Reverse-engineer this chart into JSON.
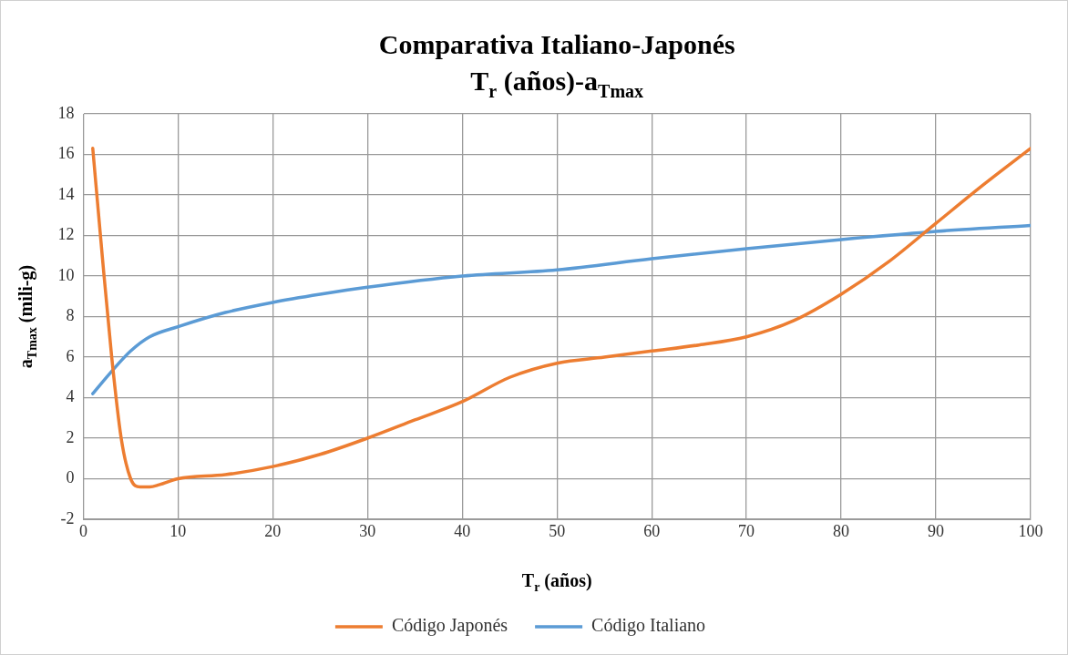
{
  "chart_data": {
    "type": "line",
    "title": "Comparativa Italiano-Japonés\nT$_{r}$ (años)-a$_{Tmax}$",
    "xlabel": "T$_{r}$ (años)",
    "ylabel": "a$_{Tmax}$ (mili-g)",
    "xlim": [
      0,
      100
    ],
    "xticks": [
      0,
      10,
      20,
      30,
      40,
      50,
      60,
      70,
      80,
      90,
      100
    ],
    "ylim": [
      -2,
      18
    ],
    "yticks": [
      -2,
      0,
      2,
      4,
      6,
      8,
      10,
      12,
      14,
      16,
      18
    ],
    "grid": true,
    "legend": "bottom",
    "marker": "none",
    "line_style": "solid",
    "series": [
      {
        "name": "Código Japonés",
        "color": "#ed7d31",
        "x": [
          1,
          2,
          3,
          4,
          5,
          6,
          7,
          8,
          10,
          15,
          20,
          25,
          30,
          35,
          40,
          45,
          50,
          55,
          60,
          65,
          70,
          75,
          80,
          85,
          90,
          95,
          100
        ],
        "values": [
          16.3,
          11,
          6,
          2,
          0,
          -0.4,
          -0.4,
          -0.3,
          0,
          0.2,
          0.6,
          1.2,
          2,
          2.9,
          3.8,
          5,
          5.7,
          6,
          6.3,
          6.6,
          7,
          7.8,
          9.1,
          10.7,
          12.6,
          14.5,
          16.3
        ]
      },
      {
        "name": "Código Italiano",
        "color": "#5b9bd5",
        "x": [
          1,
          3,
          5,
          7,
          10,
          15,
          20,
          25,
          30,
          40,
          50,
          60,
          70,
          80,
          90,
          100
        ],
        "values": [
          4.2,
          5.3,
          6.3,
          7,
          7.5,
          8.2,
          8.7,
          9.1,
          9.45,
          10,
          10.3,
          10.85,
          11.35,
          11.8,
          12.2,
          12.5
        ]
      }
    ]
  }
}
